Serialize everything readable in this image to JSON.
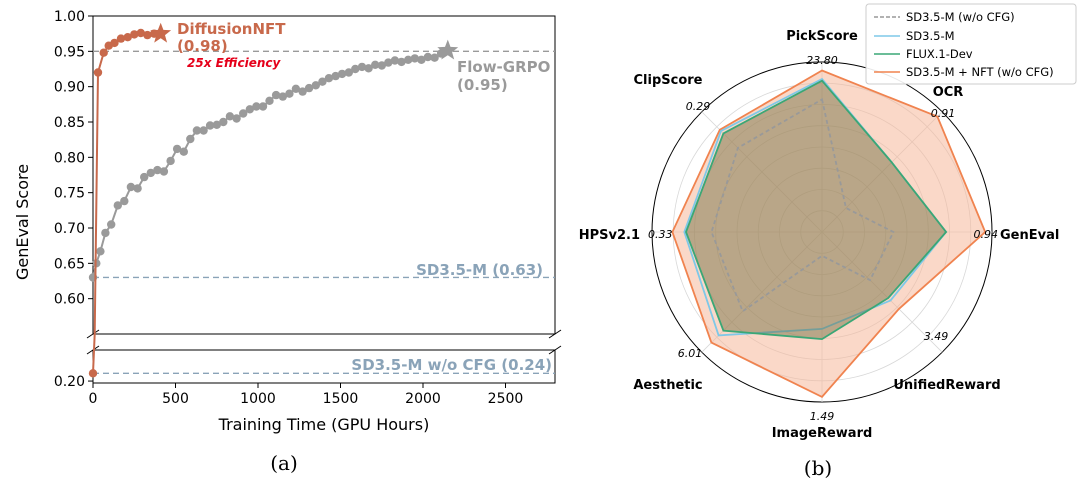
{
  "panel_a": {
    "caption": "(a)",
    "chart_data": {
      "type": "line",
      "xlabel": "Training Time (GPU Hours)",
      "ylabel": "GenEval Score",
      "xlim": [
        0,
        2800
      ],
      "ylim_upper": [
        0.55,
        1.0
      ],
      "ylim_lower": [
        0.19,
        0.36
      ],
      "broken_axis": true,
      "grid": false,
      "xticks": [
        "0",
        "500",
        "1000",
        "1500",
        "2000",
        "2500"
      ],
      "yticks_upper": [
        "0.60",
        "0.65",
        "0.70",
        "0.75",
        "0.80",
        "0.85",
        "0.90",
        "0.95",
        "1.00"
      ],
      "yticks_lower": [
        "0.20"
      ],
      "series": [
        {
          "name": "DiffusionNFT",
          "color": "#c8694b",
          "final_label": "(0.98)",
          "x": [
            0,
            10,
            30,
            65,
            95,
            130,
            170,
            210,
            250,
            290,
            330,
            370,
            410
          ],
          "y": [
            0.24,
            0.55,
            0.92,
            0.948,
            0.958,
            0.962,
            0.968,
            0.97,
            0.974,
            0.976,
            0.973,
            0.975,
            0.975
          ]
        },
        {
          "name": "Flow-GRPO",
          "color": "#9a9a9a",
          "final_label": "(0.95)",
          "x": [
            0,
            20,
            45,
            75,
            110,
            150,
            190,
            230,
            270,
            310,
            350,
            390,
            430,
            470,
            510,
            550,
            590,
            630,
            670,
            710,
            750,
            790,
            830,
            870,
            910,
            950,
            990,
            1030,
            1070,
            1110,
            1150,
            1190,
            1230,
            1270,
            1310,
            1350,
            1390,
            1430,
            1470,
            1510,
            1550,
            1590,
            1630,
            1670,
            1710,
            1750,
            1790,
            1830,
            1870,
            1910,
            1950,
            1990,
            2030,
            2070,
            2110,
            2150
          ],
          "y": [
            0.63,
            0.65,
            0.667,
            0.693,
            0.705,
            0.732,
            0.738,
            0.758,
            0.756,
            0.772,
            0.778,
            0.782,
            0.78,
            0.795,
            0.812,
            0.808,
            0.826,
            0.838,
            0.838,
            0.845,
            0.846,
            0.85,
            0.858,
            0.855,
            0.862,
            0.868,
            0.872,
            0.872,
            0.88,
            0.888,
            0.886,
            0.89,
            0.897,
            0.893,
            0.898,
            0.902,
            0.907,
            0.912,
            0.915,
            0.918,
            0.92,
            0.925,
            0.928,
            0.926,
            0.931,
            0.93,
            0.934,
            0.937,
            0.935,
            0.938,
            0.94,
            0.938,
            0.942,
            0.941,
            0.947,
            0.951
          ]
        }
      ],
      "reference_lines": [
        {
          "label": "SD3.5-M (0.63)",
          "value": 0.63,
          "color": "#8aa3b8"
        },
        {
          "label": "SD3.5-M w/o CFG (0.24)",
          "value": 0.24,
          "color": "#8aa3b8"
        },
        {
          "label": "",
          "value": 0.95,
          "color": "#9a9a9a"
        }
      ],
      "annotations": [
        {
          "text": "DiffusionNFT"
        },
        {
          "text": "(0.98)"
        },
        {
          "text": "25x Efficiency",
          "color": "#e5001a"
        },
        {
          "text": "Flow-GRPO"
        },
        {
          "text": "(0.95)"
        }
      ]
    }
  },
  "panel_b": {
    "caption": "(b)",
    "chart_data": {
      "type": "radar",
      "axes": [
        "PickScore",
        "OCR",
        "GenEval",
        "UnifiedReward",
        "ImageReward",
        "Aesthetic",
        "HPSv2.1",
        "ClipScore"
      ],
      "axis_max_labels": [
        "23.80",
        "0.91",
        "0.94",
        "3.49",
        "1.49",
        "6.01",
        "0.33",
        "0.29"
      ],
      "legend_position": "top-right",
      "series": [
        {
          "name": "SD3.5-M (w/o CFG)",
          "color": "#999999",
          "style": "dashed",
          "values": [
            0.78,
            0.2,
            0.42,
            0.4,
            0.14,
            0.66,
            0.65,
            0.7
          ]
        },
        {
          "name": "SD3.5-M",
          "color": "#7ec8e8",
          "style": "solid",
          "values": [
            0.9,
            0.58,
            0.73,
            0.57,
            0.57,
            0.86,
            0.81,
            0.84
          ]
        },
        {
          "name": "FLUX.1-Dev",
          "color": "#3aa776",
          "style": "solid",
          "values": [
            0.89,
            0.58,
            0.73,
            0.55,
            0.63,
            0.82,
            0.8,
            0.82
          ]
        },
        {
          "name": "SD3.5-M + NFT (w/o CFG)",
          "color": "#f0834f",
          "style": "solid",
          "fill": "#f6b89a",
          "values": [
            0.95,
            0.96,
            0.96,
            0.64,
            0.97,
            0.92,
            0.88,
            0.85
          ]
        }
      ]
    }
  }
}
